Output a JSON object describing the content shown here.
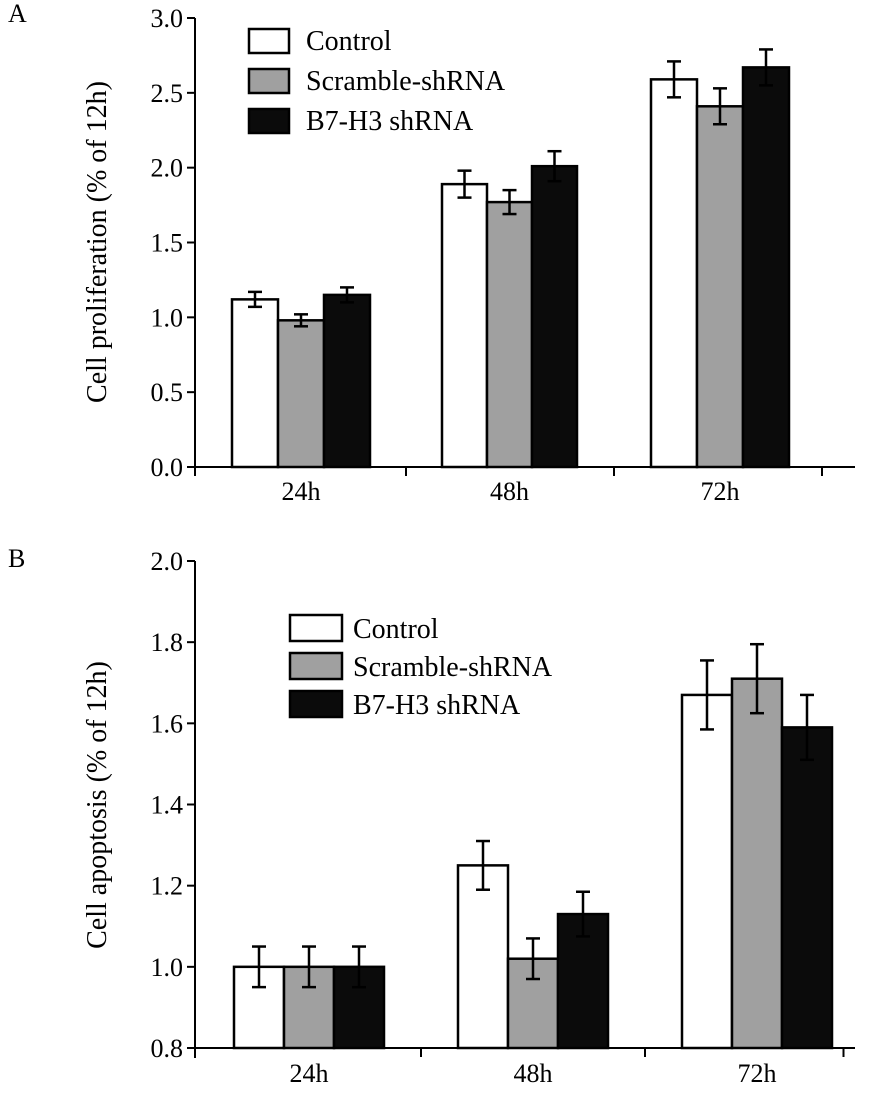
{
  "colors": {
    "control": "#ffffff",
    "scramble": "#a0a0a0",
    "b7h3": "#0b0b0b",
    "axis": "#000000"
  },
  "chart_data": [
    {
      "panel": "A",
      "type": "bar",
      "title": "",
      "xlabel": "",
      "ylabel": "Cell proliferation (% of 12h)",
      "ylim": [
        0,
        3.0
      ],
      "yticks": [
        "0.0",
        "0.5",
        "1.0",
        "1.5",
        "2.0",
        "2.5",
        "3.0"
      ],
      "categories": [
        "24h",
        "48h",
        "72h"
      ],
      "legend_position": "top-left",
      "series": [
        {
          "name": "Control",
          "values": [
            1.12,
            1.89,
            2.59
          ],
          "errors": [
            0.05,
            0.09,
            0.12
          ]
        },
        {
          "name": "Scramble-shRNA",
          "values": [
            0.98,
            1.77,
            2.41
          ],
          "errors": [
            0.04,
            0.08,
            0.12
          ]
        },
        {
          "name": "B7-H3 shRNA",
          "values": [
            1.15,
            2.01,
            2.67
          ],
          "errors": [
            0.05,
            0.1,
            0.12
          ]
        }
      ]
    },
    {
      "panel": "B",
      "type": "bar",
      "title": "",
      "xlabel": "",
      "ylabel": "Cell apoptosis (% of 12h)",
      "ylim": [
        0.8,
        2.0
      ],
      "yticks": [
        "0.8",
        "1.0",
        "1.2",
        "1.4",
        "1.6",
        "1.8",
        "2.0"
      ],
      "categories": [
        "24h",
        "48h",
        "72h"
      ],
      "legend_position": "top-left",
      "series": [
        {
          "name": "Control",
          "values": [
            1.0,
            1.25,
            1.67
          ],
          "errors": [
            0.05,
            0.06,
            0.085
          ]
        },
        {
          "name": "Scramble-shRNA",
          "values": [
            1.0,
            1.02,
            1.71
          ],
          "errors": [
            0.05,
            0.05,
            0.085
          ]
        },
        {
          "name": "B7-H3 shRNA",
          "values": [
            1.0,
            1.13,
            1.59
          ],
          "errors": [
            0.05,
            0.055,
            0.08
          ]
        }
      ]
    }
  ]
}
